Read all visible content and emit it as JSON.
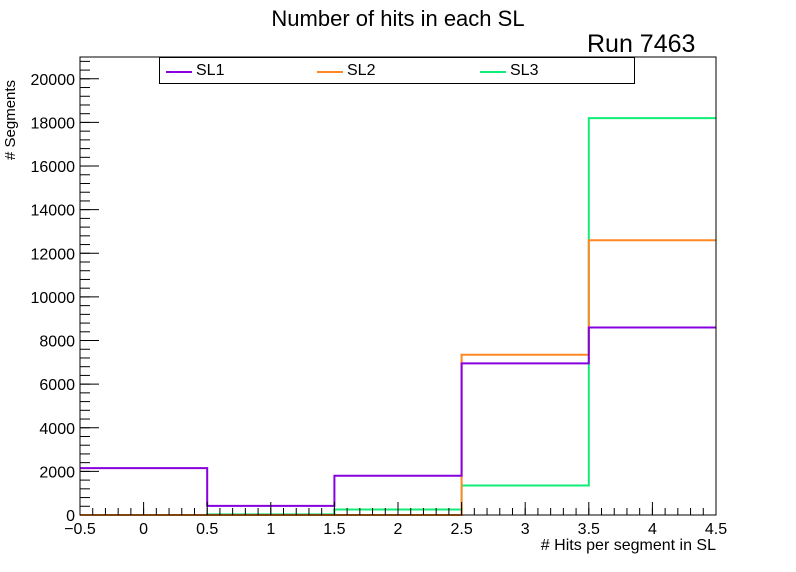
{
  "chart_data": {
    "type": "histogram",
    "title": "Number of hits in each SL",
    "annotation": "Run 7463",
    "xlabel": "# Hits per segment in SL",
    "ylabel": "# Segments",
    "xlim": [
      -0.5,
      4.5
    ],
    "ylim": [
      0,
      21000
    ],
    "bin_edges": [
      -0.5,
      0.5,
      1.5,
      2.5,
      3.5,
      4.5
    ],
    "x_ticks": [
      -0.5,
      0,
      0.5,
      1,
      1.5,
      2,
      2.5,
      3,
      3.5,
      4,
      4.5
    ],
    "x_tick_labels": [
      "−0.5",
      "0",
      "0.5",
      "1",
      "1.5",
      "2",
      "2.5",
      "3",
      "3.5",
      "4",
      "4.5"
    ],
    "y_ticks": [
      0,
      2000,
      4000,
      6000,
      8000,
      10000,
      12000,
      14000,
      16000,
      18000,
      20000
    ],
    "y_tick_labels": [
      "0",
      "2000",
      "4000",
      "6000",
      "8000",
      "10000",
      "12000",
      "14000",
      "16000",
      "18000",
      "20000"
    ],
    "series": [
      {
        "name": "SL1",
        "color": "#8800dd",
        "values": [
          2150,
          420,
          1800,
          6950,
          8600
        ]
      },
      {
        "name": "SL2",
        "color": "#ff8822",
        "values": [
          0,
          0,
          0,
          7350,
          12600
        ]
      },
      {
        "name": "SL3",
        "color": "#11ee77",
        "values": [
          0,
          30,
          250,
          1350,
          18200
        ]
      }
    ],
    "legend_position": "top"
  }
}
